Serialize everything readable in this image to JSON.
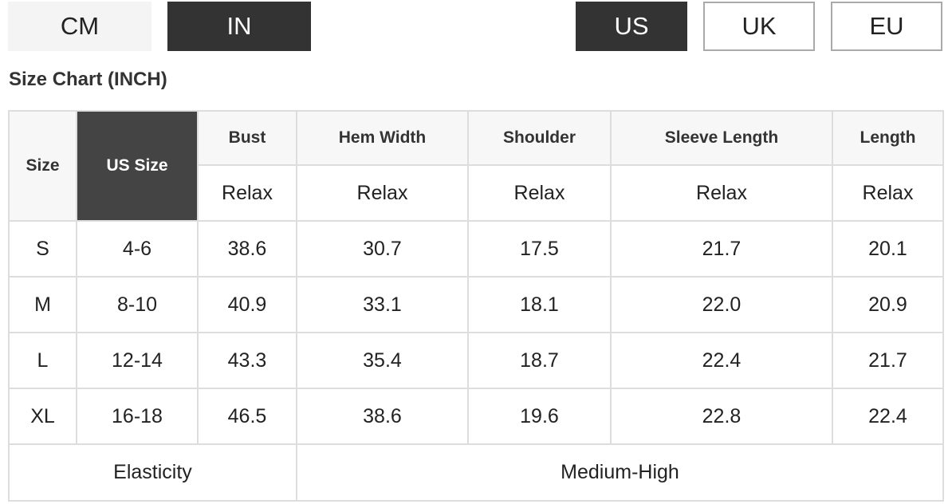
{
  "unit_buttons": [
    {
      "label": "CM",
      "active": false
    },
    {
      "label": "IN",
      "active": true
    }
  ],
  "region_buttons": [
    {
      "label": "US",
      "active": true
    },
    {
      "label": "UK",
      "active": false
    },
    {
      "label": "EU",
      "active": false
    }
  ],
  "title": "Size Chart (INCH)",
  "table": {
    "headers": [
      "Size",
      "US Size",
      "Bust",
      "Hem Width",
      "Shoulder",
      "Sleeve Length",
      "Length"
    ],
    "fit": [
      "Relax",
      "Relax",
      "Relax",
      "Relax",
      "Relax"
    ],
    "rows": [
      [
        "S",
        "4-6",
        "38.6",
        "30.7",
        "17.5",
        "21.7",
        "20.1"
      ],
      [
        "M",
        "8-10",
        "40.9",
        "33.1",
        "18.1",
        "22.0",
        "20.9"
      ],
      [
        "L",
        "12-14",
        "43.3",
        "35.4",
        "18.7",
        "22.4",
        "21.7"
      ],
      [
        "XL",
        "16-18",
        "46.5",
        "38.6",
        "19.6",
        "22.8",
        "22.4"
      ]
    ],
    "footer": {
      "label": "Elasticity",
      "value": "Medium-High"
    }
  },
  "colors": {
    "active": "#333333",
    "inactive": "#f4f4f4",
    "header_bg": "#f7f7f7",
    "border": "#dddddd"
  }
}
